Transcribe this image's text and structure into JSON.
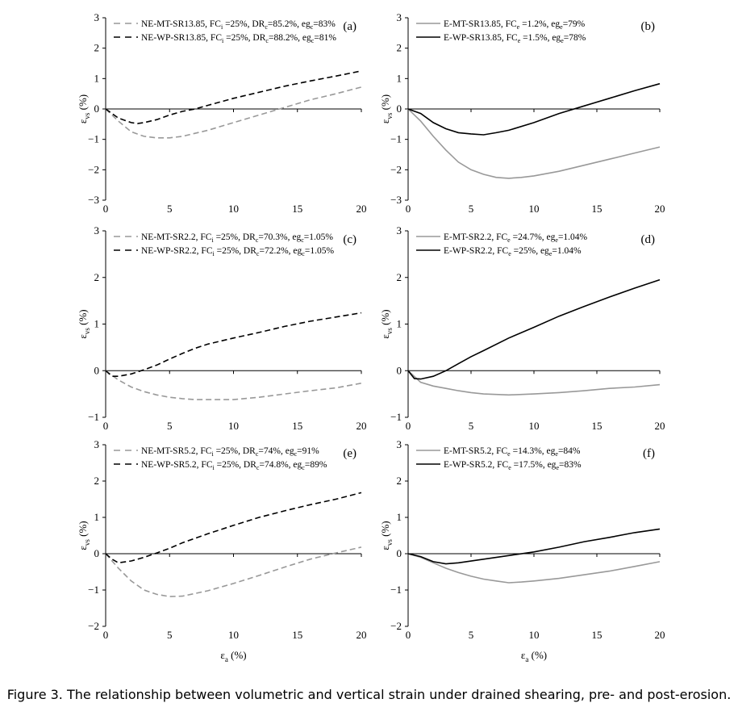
{
  "caption": "Figure 3. The relationship between volumetric and vertical strain under drained shearing, pre- and post-erosion.",
  "colors": {
    "mt": "#999999",
    "wp": "#000000"
  },
  "chart_data": [
    {
      "type": "line",
      "panel_label": "(a)",
      "ylabel": "εvs (%)",
      "xlabel": "",
      "xlim": [
        0,
        20
      ],
      "ylim": [
        -3,
        3
      ],
      "xticks": [
        0,
        5,
        10,
        15,
        20
      ],
      "yticks": [
        -3,
        -2,
        -1,
        0,
        1,
        2,
        3
      ],
      "dashed": true,
      "legend": "top-left",
      "series": [
        {
          "name": "NE-MT-SR13.85, FCi=25%, DRc=85.2%, egc=83%",
          "segments": [
            [
              "NE-MT-SR13.85, FC",
              ""
            ],
            [
              "i",
              "sub"
            ],
            [
              " =25%, DR",
              ""
            ],
            [
              "c",
              "sub"
            ],
            [
              "=85.2%, eg",
              ""
            ],
            [
              "c",
              "sub"
            ],
            [
              "=83%",
              ""
            ]
          ],
          "color": "#999999",
          "x": [
            0,
            1,
            2,
            3,
            4,
            5,
            6,
            8,
            10,
            12,
            14,
            16,
            18,
            20
          ],
          "y": [
            0,
            -0.4,
            -0.75,
            -0.9,
            -0.95,
            -0.95,
            -0.9,
            -0.7,
            -0.45,
            -0.2,
            0.05,
            0.3,
            0.5,
            0.72
          ]
        },
        {
          "name": "NE-WP-SR13.85, FCi=25%, DRc=88.2%, egc=81%",
          "segments": [
            [
              "NE-WP-SR13.85, FC",
              ""
            ],
            [
              "i",
              "sub"
            ],
            [
              " =25%, DR",
              ""
            ],
            [
              "c",
              "sub"
            ],
            [
              "=88.2%, eg",
              ""
            ],
            [
              "c",
              "sub"
            ],
            [
              "=81%",
              ""
            ]
          ],
          "color": "#000000",
          "x": [
            0,
            1,
            2,
            2.5,
            3,
            4,
            5,
            6,
            7,
            8,
            10,
            12,
            14,
            16,
            18,
            20
          ],
          "y": [
            0,
            -0.3,
            -0.45,
            -0.48,
            -0.45,
            -0.35,
            -0.2,
            -0.08,
            0,
            0.12,
            0.35,
            0.55,
            0.75,
            0.92,
            1.08,
            1.25
          ]
        }
      ]
    },
    {
      "type": "line",
      "panel_label": "(b)",
      "ylabel": "εvs (%)",
      "xlabel": "",
      "xlim": [
        0,
        20
      ],
      "ylim": [
        -3,
        3
      ],
      "xticks": [
        0,
        5,
        10,
        15,
        20
      ],
      "yticks": [
        -3,
        -2,
        -1,
        0,
        1,
        2,
        3
      ],
      "dashed": false,
      "legend": "top-left",
      "series": [
        {
          "name": "E-MT-SR13.85, FCe=1.2%, ege=79%",
          "segments": [
            [
              "E-MT-SR13.85, FC",
              ""
            ],
            [
              "e",
              "sub"
            ],
            [
              " =1.2%, eg",
              ""
            ],
            [
              "e",
              "sub"
            ],
            [
              "=79%",
              ""
            ]
          ],
          "color": "#999999",
          "x": [
            0,
            1,
            2,
            3,
            4,
            5,
            6,
            7,
            8,
            9,
            10,
            12,
            14,
            16,
            18,
            20
          ],
          "y": [
            0,
            -0.4,
            -0.9,
            -1.35,
            -1.75,
            -2.0,
            -2.15,
            -2.25,
            -2.28,
            -2.25,
            -2.2,
            -2.05,
            -1.85,
            -1.65,
            -1.45,
            -1.25
          ]
        },
        {
          "name": "E-WP-SR13.85, FCe=1.5%, ege=78%",
          "segments": [
            [
              "E-WP-SR13.85, FC",
              ""
            ],
            [
              "e",
              "sub"
            ],
            [
              " =1.5%, eg",
              ""
            ],
            [
              "e",
              "sub"
            ],
            [
              "=78%",
              ""
            ]
          ],
          "color": "#000000",
          "x": [
            0,
            1,
            2,
            3,
            4,
            5,
            6,
            7,
            8,
            10,
            12,
            14,
            16,
            18,
            20
          ],
          "y": [
            0,
            -0.15,
            -0.45,
            -0.65,
            -0.78,
            -0.82,
            -0.85,
            -0.78,
            -0.7,
            -0.45,
            -0.15,
            0.1,
            0.35,
            0.6,
            0.83
          ]
        }
      ]
    },
    {
      "type": "line",
      "panel_label": "(c)",
      "ylabel": "εvs (%)",
      "xlabel": "",
      "xlim": [
        0,
        20
      ],
      "ylim": [
        -1,
        3
      ],
      "xticks": [
        0,
        5,
        10,
        15,
        20
      ],
      "yticks": [
        -1,
        0,
        1,
        2,
        3
      ],
      "dashed": true,
      "legend": "top-left",
      "series": [
        {
          "name": "NE-MT-SR2.2, FCi=25%, DRc=70.3%, egc=1.05%",
          "segments": [
            [
              "NE-MT-SR2.2, FC",
              ""
            ],
            [
              "i",
              "sub"
            ],
            [
              " =25%, DR",
              ""
            ],
            [
              "c",
              "sub"
            ],
            [
              "=70.3%, eg",
              ""
            ],
            [
              "c",
              "sub"
            ],
            [
              "=1.05%",
              ""
            ]
          ],
          "color": "#999999",
          "x": [
            0,
            1,
            2,
            3,
            4,
            5,
            6,
            7,
            8,
            10,
            12,
            14,
            16,
            18,
            20
          ],
          "y": [
            0,
            -0.2,
            -0.35,
            -0.45,
            -0.52,
            -0.57,
            -0.6,
            -0.62,
            -0.62,
            -0.62,
            -0.57,
            -0.5,
            -0.43,
            -0.37,
            -0.27
          ]
        },
        {
          "name": "NE-WP-SR2.2, FCi=25%, DRc=72.2%, egc=1.05%",
          "segments": [
            [
              "NE-WP-SR2.2, FC",
              ""
            ],
            [
              "i",
              "sub"
            ],
            [
              " =25%, DR",
              ""
            ],
            [
              "c",
              "sub"
            ],
            [
              "=72.2%, eg",
              ""
            ],
            [
              "c",
              "sub"
            ],
            [
              "=1.05%",
              ""
            ]
          ],
          "color": "#000000",
          "x": [
            0,
            0.5,
            1,
            2,
            3,
            4,
            5,
            6,
            7,
            8,
            10,
            12,
            14,
            16,
            18,
            20
          ],
          "y": [
            0,
            -0.12,
            -0.12,
            -0.07,
            0.02,
            0.12,
            0.25,
            0.37,
            0.48,
            0.57,
            0.7,
            0.82,
            0.95,
            1.06,
            1.15,
            1.24
          ]
        }
      ]
    },
    {
      "type": "line",
      "panel_label": "(d)",
      "ylabel": "εvs (%)",
      "xlabel": "",
      "xlim": [
        0,
        20
      ],
      "ylim": [
        -1,
        3
      ],
      "xticks": [
        0,
        5,
        10,
        15,
        20
      ],
      "yticks": [
        -1,
        0,
        1,
        2,
        3
      ],
      "dashed": false,
      "legend": "top-left",
      "series": [
        {
          "name": "E-MT-SR2.2, FCe=24.7%, ege=1.04%",
          "segments": [
            [
              "E-MT-SR2.2, FC",
              ""
            ],
            [
              "e",
              "sub"
            ],
            [
              " =24.7%, eg",
              ""
            ],
            [
              "e",
              "sub"
            ],
            [
              "=1.04%",
              ""
            ]
          ],
          "color": "#999999",
          "x": [
            0,
            1,
            2,
            3,
            4,
            5,
            6,
            8,
            10,
            12,
            14,
            16,
            18,
            20
          ],
          "y": [
            0,
            -0.25,
            -0.33,
            -0.38,
            -0.43,
            -0.47,
            -0.5,
            -0.52,
            -0.5,
            -0.47,
            -0.43,
            -0.38,
            -0.35,
            -0.3
          ]
        },
        {
          "name": "E-WP-SR2.2, FCe=25%, ege=1.04%",
          "segments": [
            [
              "E-WP-SR2.2, FC",
              ""
            ],
            [
              "e",
              "sub"
            ],
            [
              " =25%, eg",
              ""
            ],
            [
              "e",
              "sub"
            ],
            [
              "=1.04%",
              ""
            ]
          ],
          "color": "#000000",
          "x": [
            0,
            0.5,
            1,
            2,
            3,
            4,
            5,
            6,
            8,
            10,
            12,
            14,
            16,
            18,
            20
          ],
          "y": [
            0,
            -0.17,
            -0.18,
            -0.12,
            0,
            0.15,
            0.3,
            0.43,
            0.7,
            0.93,
            1.17,
            1.38,
            1.58,
            1.77,
            1.95
          ]
        }
      ]
    },
    {
      "type": "line",
      "panel_label": "(e)",
      "ylabel": "εvs (%)",
      "xlabel": "εa (%)",
      "xlim": [
        0,
        20
      ],
      "ylim": [
        -2,
        3
      ],
      "xticks": [
        0,
        5,
        10,
        15,
        20
      ],
      "yticks": [
        -2,
        -1,
        0,
        1,
        2,
        3
      ],
      "dashed": true,
      "legend": "top-left",
      "series": [
        {
          "name": "NE-MT-SR5.2, FCi=25%, DRc=74%, egc=91%",
          "segments": [
            [
              "NE-MT-SR5.2, FC",
              ""
            ],
            [
              "i",
              "sub"
            ],
            [
              " =25%, DR",
              ""
            ],
            [
              "c",
              "sub"
            ],
            [
              "=74%, eg",
              ""
            ],
            [
              "c",
              "sub"
            ],
            [
              "=91%",
              ""
            ]
          ],
          "color": "#999999",
          "x": [
            0,
            1,
            2,
            3,
            4,
            5,
            6,
            8,
            10,
            12,
            14,
            16,
            18,
            20
          ],
          "y": [
            0,
            -0.4,
            -0.75,
            -1.0,
            -1.12,
            -1.18,
            -1.17,
            -1.02,
            -0.82,
            -0.6,
            -0.37,
            -0.15,
            0.02,
            0.18
          ]
        },
        {
          "name": "NE-WP-SR5.2, FCi=25%, DRc=74.8%, egc=89%",
          "segments": [
            [
              "NE-WP-SR5.2, FC",
              ""
            ],
            [
              "i",
              "sub"
            ],
            [
              " =25%, DR",
              ""
            ],
            [
              "c",
              "sub"
            ],
            [
              "=74.8%, eg",
              ""
            ],
            [
              "c",
              "sub"
            ],
            [
              "=89%",
              ""
            ]
          ],
          "color": "#000000",
          "x": [
            0,
            0.5,
            1,
            2,
            3,
            4,
            5,
            6,
            8,
            10,
            12,
            14,
            16,
            18,
            20
          ],
          "y": [
            0,
            -0.15,
            -0.25,
            -0.2,
            -0.1,
            0.02,
            0.15,
            0.3,
            0.55,
            0.78,
            1.0,
            1.18,
            1.35,
            1.5,
            1.68
          ]
        }
      ]
    },
    {
      "type": "line",
      "panel_label": "(f)",
      "ylabel": "εvs (%)",
      "xlabel": "εa (%)",
      "xlim": [
        0,
        20
      ],
      "ylim": [
        -2,
        3
      ],
      "xticks": [
        0,
        5,
        10,
        15,
        20
      ],
      "yticks": [
        -2,
        -1,
        0,
        1,
        2,
        3
      ],
      "dashed": false,
      "legend": "top-left",
      "series": [
        {
          "name": "E-MT-SR5.2, FCe=14.3%, ege=84%",
          "segments": [
            [
              "E-MT-SR5.2, FC",
              ""
            ],
            [
              "e",
              "sub"
            ],
            [
              " =14.3%, eg",
              ""
            ],
            [
              "e",
              "sub"
            ],
            [
              "=84%",
              ""
            ]
          ],
          "color": "#999999",
          "x": [
            0,
            1,
            2,
            3,
            4,
            5,
            6,
            7,
            8,
            9,
            10,
            12,
            14,
            16,
            18,
            20
          ],
          "y": [
            0,
            -0.1,
            -0.25,
            -0.4,
            -0.52,
            -0.62,
            -0.7,
            -0.75,
            -0.8,
            -0.78,
            -0.75,
            -0.68,
            -0.58,
            -0.48,
            -0.35,
            -0.22
          ]
        },
        {
          "name": "E-WP-SR5.2, FCe=17.5%, ege=83%",
          "segments": [
            [
              "E-WP-SR5.2, FC",
              ""
            ],
            [
              "e",
              "sub"
            ],
            [
              " =17.5%, eg",
              ""
            ],
            [
              "e",
              "sub"
            ],
            [
              "=83%",
              ""
            ]
          ],
          "color": "#000000",
          "x": [
            0,
            1,
            2,
            3,
            4,
            6,
            8,
            10,
            12,
            14,
            16,
            18,
            20
          ],
          "y": [
            0,
            -0.08,
            -0.22,
            -0.28,
            -0.25,
            -0.15,
            -0.05,
            0.05,
            0.18,
            0.33,
            0.45,
            0.58,
            0.68
          ]
        }
      ]
    }
  ]
}
